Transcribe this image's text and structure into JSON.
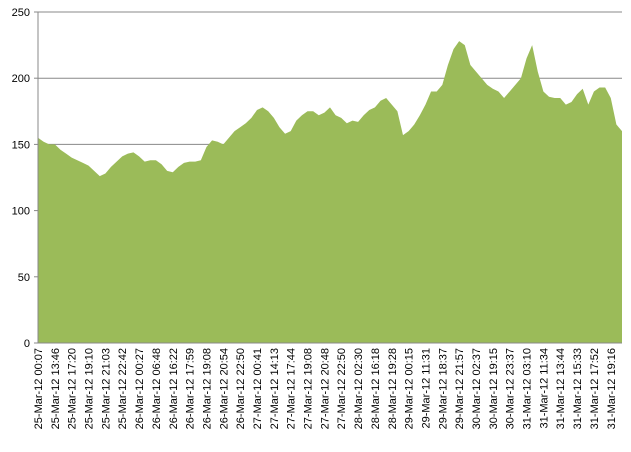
{
  "chart_data": {
    "type": "area",
    "color": "#9bbb59",
    "grid": true,
    "ylim": [
      0,
      250
    ],
    "yticks": [
      0,
      50,
      100,
      150,
      200,
      250
    ],
    "categories": [
      "25-Mar-12 00:07",
      null,
      null,
      "25-Mar-12 13:46",
      null,
      null,
      "25-Mar-12 17:20",
      null,
      null,
      "25-Mar-12 19:10",
      null,
      null,
      "25-Mar-12 21:03",
      null,
      null,
      "25-Mar-12 22:42",
      null,
      null,
      "26-Mar-12 00:27",
      null,
      null,
      "26-Mar-12 06:48",
      null,
      null,
      "26-Mar-12 16:22",
      null,
      null,
      "26-Mar-12 17:59",
      null,
      null,
      "26-Mar-12 19:08",
      null,
      null,
      "26-Mar-12 20:54",
      null,
      null,
      "26-Mar-12 22:50",
      null,
      null,
      "27-Mar-12 00:41",
      null,
      null,
      "27-Mar-12 14:13",
      null,
      null,
      "27-Mar-12 17:44",
      null,
      null,
      "27-Mar-12 19:08",
      null,
      null,
      "27-Mar-12 20:48",
      null,
      null,
      "27-Mar-12 22:50",
      null,
      null,
      "28-Mar-12 02:30",
      null,
      null,
      "28-Mar-12 16:18",
      null,
      null,
      "28-Mar-12 19:28",
      null,
      null,
      "29-Mar-12 00:15",
      null,
      null,
      "29-Mar-12 11:31",
      null,
      null,
      "29-Mar-12 18:37",
      null,
      null,
      "29-Mar-12 21:57",
      null,
      null,
      "30-Mar-12 02:37",
      null,
      null,
      "30-Mar-12 19:15",
      null,
      null,
      "30-Mar-12 23:37",
      null,
      null,
      "31-Mar-12 03:10",
      null,
      null,
      "31-Mar-12 11:34",
      null,
      null,
      "31-Mar-12 13:44",
      null,
      null,
      "31-Mar-12 15:33",
      null,
      null,
      "31-Mar-12 17:52",
      null,
      null,
      "31-Mar-12 19:16",
      null,
      null
    ],
    "values": [
      155,
      152,
      150,
      150,
      146,
      143,
      140,
      138,
      136,
      134,
      130,
      126,
      128,
      133,
      137,
      141,
      143,
      144,
      141,
      137,
      138,
      138,
      135,
      130,
      129,
      133,
      136,
      137,
      137,
      138,
      148,
      153,
      152,
      150,
      155,
      160,
      163,
      166,
      170,
      176,
      178,
      175,
      170,
      163,
      158,
      160,
      168,
      172,
      175,
      175,
      172,
      174,
      178,
      172,
      170,
      166,
      168,
      167,
      172,
      176,
      178,
      183,
      185,
      180,
      175,
      157,
      160,
      165,
      172,
      180,
      190,
      190,
      195,
      210,
      222,
      228,
      225,
      210,
      205,
      200,
      195,
      192,
      190,
      185,
      190,
      195,
      200,
      215,
      225,
      205,
      190,
      186,
      185,
      185,
      180,
      182,
      188,
      192,
      180,
      190,
      193,
      193,
      185,
      165,
      160
    ]
  }
}
